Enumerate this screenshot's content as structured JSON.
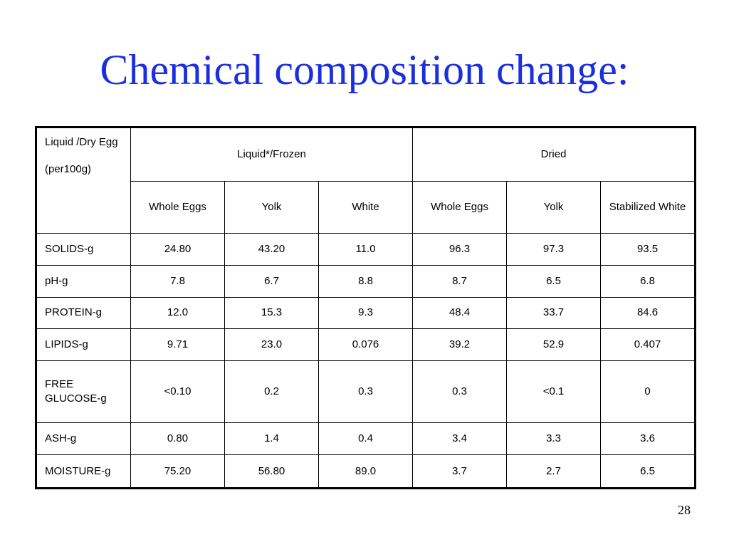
{
  "slide": {
    "title": "Chemical composition change:",
    "page_number": "28"
  },
  "table": {
    "corner_line1": "Liquid /Dry Egg",
    "corner_line2": "(per100g)",
    "group_headers": [
      "Liquid*/Frozen",
      "Dried"
    ],
    "column_headers": [
      "Whole Eggs",
      "Yolk",
      "White",
      "Whole Eggs",
      "Yolk",
      "Stabilized White"
    ],
    "rows": [
      {
        "label": "SOLIDS-g",
        "values": [
          "24.80",
          "43.20",
          "11.0",
          "96.3",
          "97.3",
          "93.5"
        ]
      },
      {
        "label": "pH-g",
        "values": [
          "7.8",
          "6.7",
          "8.8",
          "8.7",
          "6.5",
          "6.8"
        ]
      },
      {
        "label": "PROTEIN-g",
        "values": [
          "12.0",
          "15.3",
          "9.3",
          "48.4",
          "33.7",
          "84.6"
        ]
      },
      {
        "label": "LIPIDS-g",
        "values": [
          "9.71",
          "23.0",
          "0.076",
          "39.2",
          "52.9",
          "0.407"
        ]
      },
      {
        "label": "FREE GLUCOSE-g",
        "values": [
          "<0.10",
          "0.2",
          "0.3",
          "0.3",
          "<0.1",
          "0"
        ]
      },
      {
        "label": "ASH-g",
        "values": [
          "0.80",
          "1.4",
          "0.4",
          "3.4",
          "3.3",
          "3.6"
        ]
      },
      {
        "label": "MOISTURE-g",
        "values": [
          "75.20",
          "56.80",
          "89.0",
          "3.7",
          "2.7",
          "6.5"
        ]
      }
    ]
  },
  "colors": {
    "title": "#1a2fe0",
    "text": "#000000",
    "border": "#000000",
    "background": "#ffffff"
  }
}
